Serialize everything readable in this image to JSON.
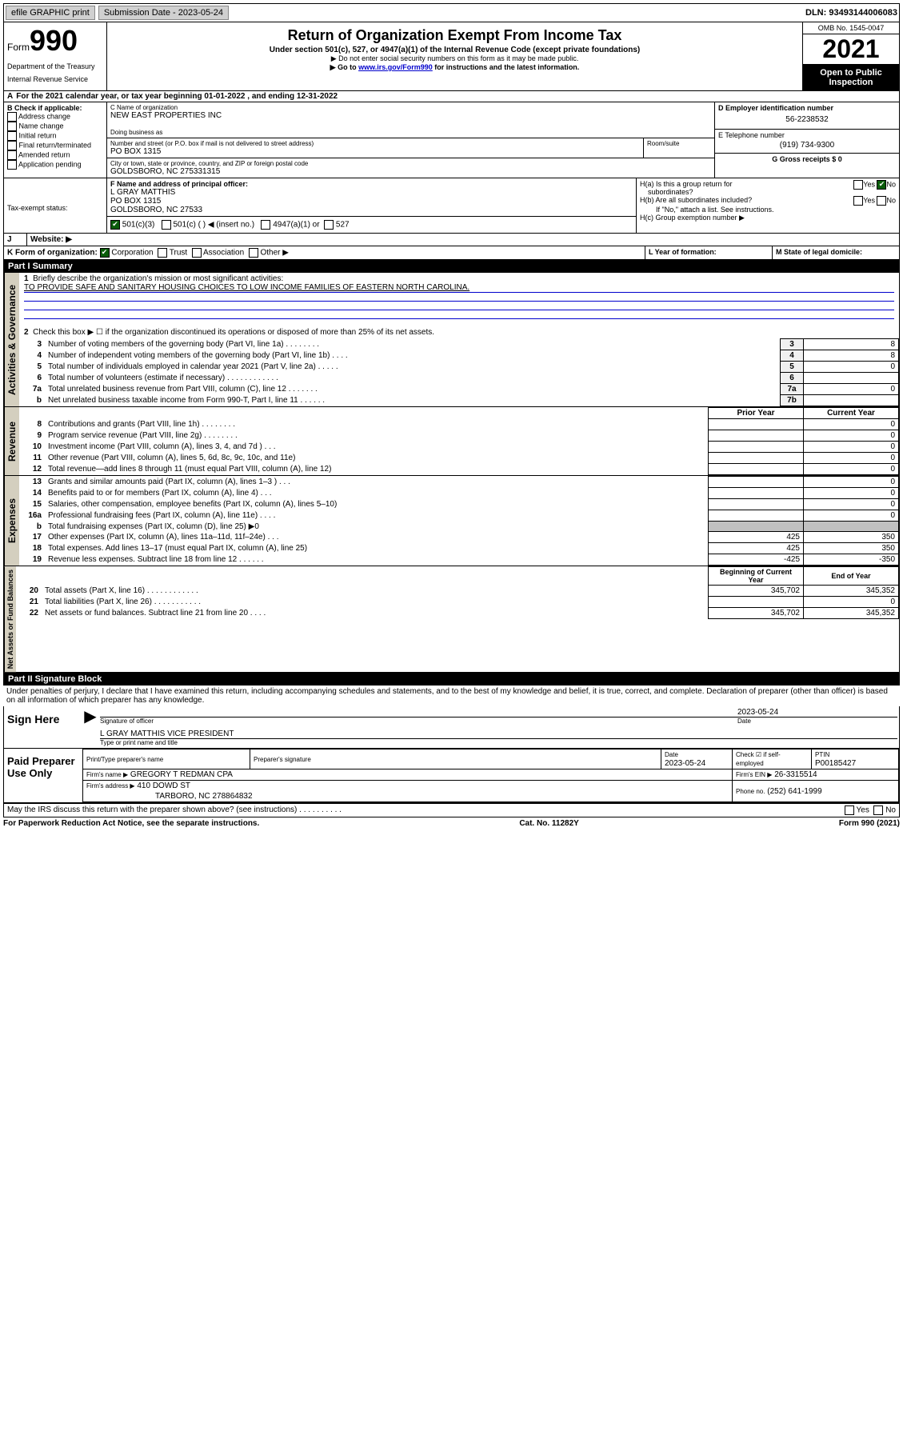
{
  "topbar": {
    "efile": "efile GRAPHIC print",
    "submission_label": "Submission Date - 2023-05-24",
    "dln": "DLN: 93493144006083"
  },
  "header": {
    "form_word": "Form",
    "form_num": "990",
    "title": "Return of Organization Exempt From Income Tax",
    "subtitle": "Under section 501(c), 527, or 4947(a)(1) of the Internal Revenue Code (except private foundations)",
    "note1": "▶ Do not enter social security numbers on this form as it may be made public.",
    "note2_pre": "▶ Go to ",
    "note2_link": "www.irs.gov/Form990",
    "note2_post": " for instructions and the latest information.",
    "dept": "Department of the Treasury",
    "irs": "Internal Revenue Service",
    "omb": "OMB No. 1545-0047",
    "year": "2021",
    "inspect1": "Open to Public",
    "inspect2": "Inspection"
  },
  "periodA": "For the 2021 calendar year, or tax year beginning 01-01-2022   , and ending 12-31-2022",
  "sectionB": {
    "label": "B Check if applicable:",
    "opts": [
      "Address change",
      "Name change",
      "Initial return",
      "Final return/terminated",
      "Amended return",
      "Application pending"
    ]
  },
  "sectionC": {
    "name_label": "C Name of organization",
    "name": "NEW EAST PROPERTIES INC",
    "dba_label": "Doing business as",
    "addr_label": "Number and street (or P.O. box if mail is not delivered to street address)",
    "room_label": "Room/suite",
    "addr": "PO BOX 1315",
    "city_label": "City or town, state or province, country, and ZIP or foreign postal code",
    "city": "GOLDSBORO, NC  275331315"
  },
  "sectionD": {
    "label": "D Employer identification number",
    "value": "56-2238532"
  },
  "sectionE": {
    "label": "E Telephone number",
    "value": "(919) 734-9300"
  },
  "sectionG": {
    "label": "G Gross receipts $ 0"
  },
  "sectionF": {
    "label": "F Name and address of principal officer:",
    "line1": "L GRAY MATTHIS",
    "line2": "PO BOX 1315",
    "line3": "GOLDSBORO, NC  27533"
  },
  "sectionH": {
    "a": "H(a)  Is this a group return for",
    "a2": "subordinates?",
    "b": "H(b)  Are all subordinates included?",
    "b_note": "If \"No,\" attach a list. See instructions.",
    "c": "H(c)  Group exemption number ▶"
  },
  "sectionI": {
    "label": "Tax-exempt status:",
    "o1": "501(c)(3)",
    "o2": "501(c) (   ) ◀ (insert no.)",
    "o3": "4947(a)(1) or",
    "o4": "527"
  },
  "sectionJ": {
    "label": "Website: ▶"
  },
  "sectionK": {
    "label": "K Form of organization:",
    "o1": "Corporation",
    "o2": "Trust",
    "o3": "Association",
    "o4": "Other ▶"
  },
  "sectionL": "L Year of formation:",
  "sectionM": "M State of legal domicile:",
  "partI": {
    "header": "Part I     Summary",
    "q1": "Briefly describe the organization's mission or most significant activities:",
    "mission": "TO PROVIDE SAFE AND SANITARY HOUSING CHOICES TO LOW INCOME FAMILIES OF EASTERN NORTH CAROLINA.",
    "q2": "Check this box ▶ ☐  if the organization discontinued its operations or disposed of more than 25% of its net assets.",
    "rows": [
      {
        "n": "3",
        "t": "Number of voting members of the governing body (Part VI, line 1a)   .    .    .    .    .    .    .    .",
        "vn": "3",
        "v": "8"
      },
      {
        "n": "4",
        "t": "Number of independent voting members of the governing body (Part VI, line 1b)   .    .    .    .",
        "vn": "4",
        "v": "8"
      },
      {
        "n": "5",
        "t": "Total number of individuals employed in calendar year 2021 (Part V, line 2a)   .    .    .    .    .",
        "vn": "5",
        "v": "0"
      },
      {
        "n": "6",
        "t": "Total number of volunteers (estimate if necessary)   .    .    .    .    .    .    .    .    .    .    .    .",
        "vn": "6",
        "v": ""
      },
      {
        "n": "7a",
        "t": "Total unrelated business revenue from Part VIII, column (C), line 12   .    .    .    .    .    .    .",
        "vn": "7a",
        "v": "0"
      },
      {
        "n": "b",
        "t": "Net unrelated business taxable income from Form 990-T, Part I, line 11   .    .    .    .    .    .",
        "vn": "7b",
        "v": ""
      }
    ],
    "prior": "Prior Year",
    "current": "Current Year",
    "revenue": [
      {
        "n": "8",
        "t": "Contributions and grants (Part VIII, line 1h)   .    .    .    .    .    .    .    .",
        "p": "",
        "c": "0"
      },
      {
        "n": "9",
        "t": "Program service revenue (Part VIII, line 2g)   .    .    .    .    .    .    .    .",
        "p": "",
        "c": "0"
      },
      {
        "n": "10",
        "t": "Investment income (Part VIII, column (A), lines 3, 4, and 7d )   .    .    .",
        "p": "",
        "c": "0"
      },
      {
        "n": "11",
        "t": "Other revenue (Part VIII, column (A), lines 5, 6d, 8c, 9c, 10c, and 11e)",
        "p": "",
        "c": "0"
      },
      {
        "n": "12",
        "t": "Total revenue—add lines 8 through 11 (must equal Part VIII, column (A), line 12)",
        "p": "",
        "c": "0"
      }
    ],
    "expenses": [
      {
        "n": "13",
        "t": "Grants and similar amounts paid (Part IX, column (A), lines 1–3 )   .    .    .",
        "p": "",
        "c": "0"
      },
      {
        "n": "14",
        "t": "Benefits paid to or for members (Part IX, column (A), line 4)   .    .    .",
        "p": "",
        "c": "0"
      },
      {
        "n": "15",
        "t": "Salaries, other compensation, employee benefits (Part IX, column (A), lines 5–10)",
        "p": "",
        "c": "0"
      },
      {
        "n": "16a",
        "t": "Professional fundraising fees (Part IX, column (A), line 11e)   .    .    .    .",
        "p": "",
        "c": "0"
      },
      {
        "n": "b",
        "t": "Total fundraising expenses (Part IX, column (D), line 25) ▶0",
        "p": "GREY",
        "c": "GREY"
      },
      {
        "n": "17",
        "t": "Other expenses (Part IX, column (A), lines 11a–11d, 11f–24e)   .    .    .",
        "p": "425",
        "c": "350"
      },
      {
        "n": "18",
        "t": "Total expenses. Add lines 13–17 (must equal Part IX, column (A), line 25)",
        "p": "425",
        "c": "350"
      },
      {
        "n": "19",
        "t": "Revenue less expenses. Subtract line 18 from line 12   .    .    .    .    .    .",
        "p": "-425",
        "c": "-350"
      }
    ],
    "bcy": "Beginning of Current Year",
    "eoy": "End of Year",
    "assets": [
      {
        "n": "20",
        "t": "Total assets (Part X, line 16)   .    .    .    .    .    .    .    .    .    .    .    .",
        "p": "345,702",
        "c": "345,352"
      },
      {
        "n": "21",
        "t": "Total liabilities (Part X, line 26)   .    .    .    .    .    .    .    .    .    .    .",
        "p": "",
        "c": "0"
      },
      {
        "n": "22",
        "t": "Net assets or fund balances. Subtract line 21 from line 20   .    .    .    .",
        "p": "345,702",
        "c": "345,352"
      }
    ]
  },
  "partII": {
    "header": "Part II    Signature Block",
    "declaration": "Under penalties of perjury, I declare that I have examined this return, including accompanying schedules and statements, and to the best of my knowledge and belief, it is true, correct, and complete. Declaration of preparer (other than officer) is based on all information of which preparer has any knowledge."
  },
  "sign": {
    "left": "Sign Here",
    "sig_label": "Signature of officer",
    "date": "2023-05-24",
    "date_label": "Date",
    "name": "L GRAY MATTHIS  VICE PRESIDENT",
    "name_label": "Type or print name and title"
  },
  "paid": {
    "left": "Paid Preparer Use Only",
    "h1": "Print/Type preparer's name",
    "h2": "Preparer's signature",
    "h3": "Date",
    "h3v": "2023-05-24",
    "h4": "Check ☑ if self-employed",
    "h5": "PTIN",
    "h5v": "P00185427",
    "firm_name_label": "Firm's name    ▶",
    "firm_name": "GREGORY T REDMAN CPA",
    "firm_ein_label": "Firm's EIN ▶",
    "firm_ein": "26-3315514",
    "firm_addr_label": "Firm's address ▶",
    "firm_addr1": "410 DOWD ST",
    "firm_addr2": "TARBORO, NC  278864832",
    "phone_label": "Phone no.",
    "phone": "(252) 641-1999"
  },
  "may_irs": "May the IRS discuss this return with the preparer shown above? (see instructions)   .    .    .    .    .    .    .    .    .    .",
  "yes": "Yes",
  "no": "No",
  "footer": {
    "left": "For Paperwork Reduction Act Notice, see the separate instructions.",
    "mid": "Cat. No. 11282Y",
    "right": "Form 990 (2021)"
  },
  "sidebars": {
    "gov": "Activities & Governance",
    "rev": "Revenue",
    "exp": "Expenses",
    "net": "Net Assets or Fund Balances"
  }
}
